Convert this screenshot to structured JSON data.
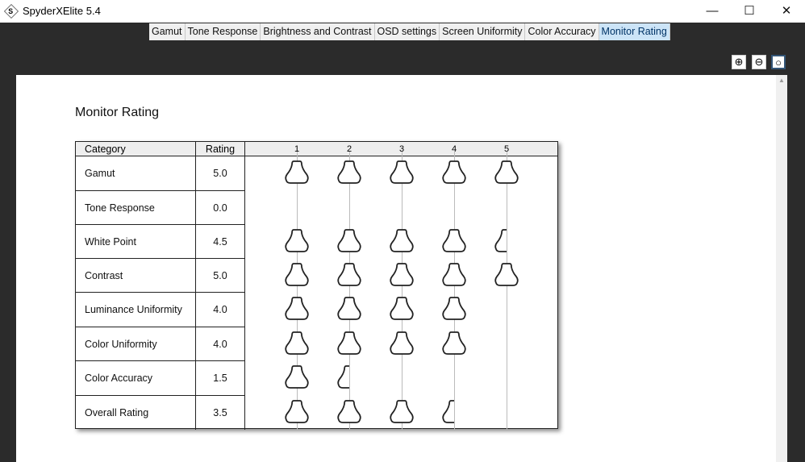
{
  "window": {
    "title": "SpyderXElite 5.4",
    "app_icon_letter": "S",
    "minimize": "—",
    "maximize": "☐",
    "close": "✕"
  },
  "tabs": [
    {
      "label": "Gamut"
    },
    {
      "label": "Tone Response"
    },
    {
      "label": "Brightness and Contrast"
    },
    {
      "label": "OSD settings"
    },
    {
      "label": "Screen Uniformity"
    },
    {
      "label": "Color Accuracy"
    },
    {
      "label": "Monitor Rating",
      "active": true
    }
  ],
  "zoom_controls": [
    "zoom-in-icon",
    "zoom-out-icon",
    "zoom-fit-icon"
  ],
  "page": {
    "title": "Monitor Rating"
  },
  "table": {
    "headers": {
      "category": "Category",
      "rating": "Rating"
    },
    "scale": [
      "1",
      "2",
      "3",
      "4",
      "5"
    ],
    "rows": [
      {
        "category": "Gamut",
        "rating": "5.0",
        "value": 5.0
      },
      {
        "category": "Tone Response",
        "rating": "0.0",
        "value": 0.0
      },
      {
        "category": "White Point",
        "rating": "4.5",
        "value": 4.5
      },
      {
        "category": "Contrast",
        "rating": "5.0",
        "value": 5.0
      },
      {
        "category": "Luminance Uniformity",
        "rating": "4.0",
        "value": 4.0
      },
      {
        "category": "Color Uniformity",
        "rating": "4.0",
        "value": 4.0
      },
      {
        "category": "Color Accuracy",
        "rating": "1.5",
        "value": 1.5
      },
      {
        "category": "Overall Rating",
        "rating": "3.5",
        "value": 3.5
      }
    ]
  }
}
